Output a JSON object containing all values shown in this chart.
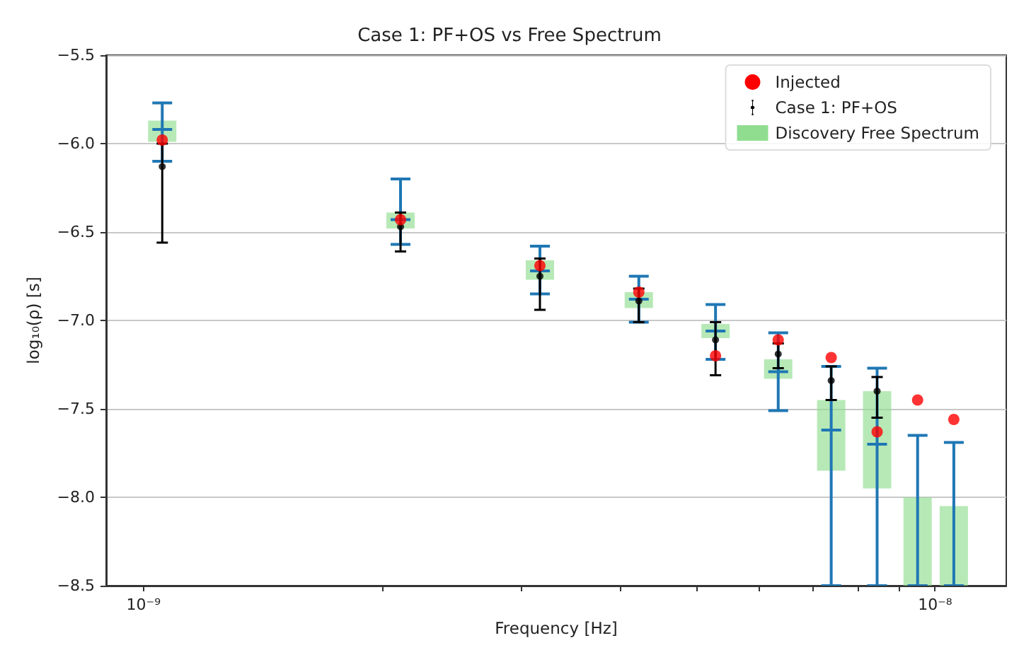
{
  "chart_data": {
    "type": "scatter",
    "title": "Case 1: PF+OS vs Free Spectrum",
    "xlabel": "Frequency [Hz]",
    "ylabel": "log₁₀(ρ) [s]",
    "log": "x",
    "grid": true,
    "legend": "top right",
    "xlim": [
      8.97e-10,
      1.23e-08
    ],
    "ylim": [
      -8.5,
      -5.5
    ],
    "xticks": [
      {
        "value": 1e-09,
        "label": "10⁻⁹"
      },
      {
        "value": 2e-09,
        "label": null
      },
      {
        "value": 3e-09,
        "label": null
      },
      {
        "value": 4e-09,
        "label": null
      },
      {
        "value": 5e-09,
        "label": null
      },
      {
        "value": 6e-09,
        "label": null
      },
      {
        "value": 7e-09,
        "label": null
      },
      {
        "value": 8e-09,
        "label": null
      },
      {
        "value": 9e-09,
        "label": null
      },
      {
        "value": 1e-08,
        "label": "10⁻⁸"
      }
    ],
    "yticks": [
      {
        "value": -5.5,
        "label": "−5.5"
      },
      {
        "value": -6.0,
        "label": "−6.0"
      },
      {
        "value": -6.5,
        "label": "−6.5"
      },
      {
        "value": -7.0,
        "label": "−7.0"
      },
      {
        "value": -7.5,
        "label": "−7.5"
      },
      {
        "value": -8.0,
        "label": "−8.0"
      },
      {
        "value": -8.5,
        "label": "−8.5"
      }
    ],
    "x": [
      1.056e-09,
      2.112e-09,
      3.168e-09,
      4.224e-09,
      5.28e-09,
      6.336e-09,
      7.392e-09,
      8.448e-09,
      9.504e-09,
      1.056e-08
    ],
    "series": [
      {
        "name": "Injected",
        "color": "#ff0000",
        "marker": "circle",
        "values": [
          -5.98,
          -6.43,
          -6.69,
          -6.84,
          -7.2,
          -7.11,
          -7.21,
          -7.63,
          -7.45,
          -7.56
        ]
      },
      {
        "name": "Case 1: PF+OS",
        "color": "#000000",
        "marker": "circle",
        "values": [
          -6.13,
          -6.47,
          -6.75,
          -6.89,
          -7.11,
          -7.19,
          -7.34,
          -7.4,
          null,
          null
        ],
        "errors": [
          [
            -6.56,
            -6.0
          ],
          [
            -6.61,
            -6.39
          ],
          [
            -6.94,
            -6.65
          ],
          [
            -7.01,
            -6.82
          ],
          [
            -7.31,
            -7.01
          ],
          [
            -7.27,
            -7.13
          ],
          [
            -7.45,
            -7.26
          ],
          [
            -7.55,
            -7.32
          ],
          null,
          null
        ]
      },
      {
        "name": "Discovery Free Spectrum",
        "type": "box",
        "color": "#90dd90",
        "boxes": [
          {
            "low": -6.1,
            "q1": -5.99,
            "median": -5.92,
            "q3": -5.87,
            "high": -5.77
          },
          {
            "low": -6.57,
            "q1": -6.48,
            "median": -6.43,
            "q3": -6.39,
            "high": -6.2
          },
          {
            "low": -6.85,
            "q1": -6.77,
            "median": -6.72,
            "q3": -6.66,
            "high": -6.58
          },
          {
            "low": -7.01,
            "q1": -6.93,
            "median": -6.88,
            "q3": -6.84,
            "high": -6.75
          },
          {
            "low": -7.22,
            "q1": -7.1,
            "median": -7.06,
            "q3": -7.02,
            "high": -6.91
          },
          {
            "low": -7.51,
            "q1": -7.33,
            "median": -7.29,
            "q3": -7.22,
            "high": -7.07
          },
          {
            "low": -8.5,
            "q1": -7.85,
            "median": -7.62,
            "q3": -7.45,
            "high": -7.26
          },
          {
            "low": -8.5,
            "q1": -7.95,
            "median": -7.7,
            "q3": -7.4,
            "high": -7.27
          },
          {
            "low": -8.5,
            "q1": -8.5,
            "median": null,
            "q3": -8.0,
            "high": -7.65
          },
          {
            "low": -8.5,
            "q1": -8.5,
            "median": null,
            "q3": -8.05,
            "high": -7.69
          }
        ]
      }
    ]
  }
}
